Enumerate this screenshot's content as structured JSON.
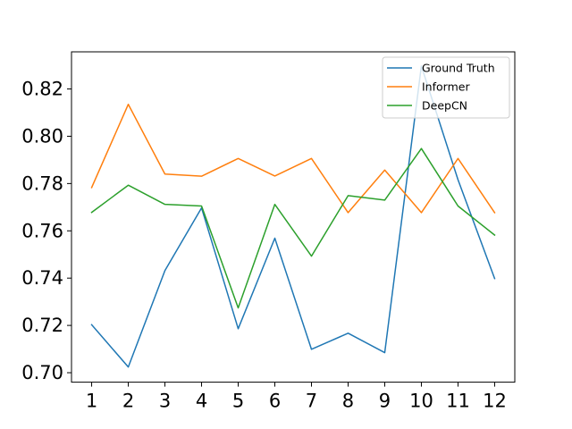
{
  "chart_data": {
    "type": "line",
    "title": "",
    "xlabel": "",
    "ylabel": "",
    "x": [
      1,
      2,
      3,
      4,
      5,
      6,
      7,
      8,
      9,
      10,
      11,
      12
    ],
    "x_tick_labels": [
      "1",
      "2",
      "3",
      "4",
      "5",
      "6",
      "7",
      "8",
      "9",
      "10",
      "11",
      "12"
    ],
    "y_ticks": [
      0.7,
      0.72,
      0.74,
      0.76,
      0.78,
      0.8,
      0.82
    ],
    "y_tick_labels": [
      "0.70",
      "0.72",
      "0.74",
      "0.76",
      "0.78",
      "0.80",
      "0.82"
    ],
    "xlim": [
      0.45,
      12.55
    ],
    "ylim": [
      0.696,
      0.8357
    ],
    "grid": false,
    "legend_position": "top-right",
    "series": [
      {
        "name": "Ground Truth",
        "color": "#1f77b4",
        "values": [
          0.7203,
          0.7024,
          0.7432,
          0.7697,
          0.7186,
          0.7569,
          0.7099,
          0.7167,
          0.7085,
          0.8297,
          0.7816,
          0.7398
        ]
      },
      {
        "name": "Informer",
        "color": "#ff7f0e",
        "values": [
          0.7783,
          0.8135,
          0.784,
          0.7831,
          0.7906,
          0.7832,
          0.7906,
          0.7677,
          0.7857,
          0.7677,
          0.7906,
          0.7677
        ]
      },
      {
        "name": "DeepCN",
        "color": "#2ca02c",
        "values": [
          0.7678,
          0.7793,
          0.7712,
          0.7705,
          0.7274,
          0.7712,
          0.7493,
          0.7749,
          0.773,
          0.7948,
          0.7705,
          0.7582
        ]
      }
    ]
  }
}
